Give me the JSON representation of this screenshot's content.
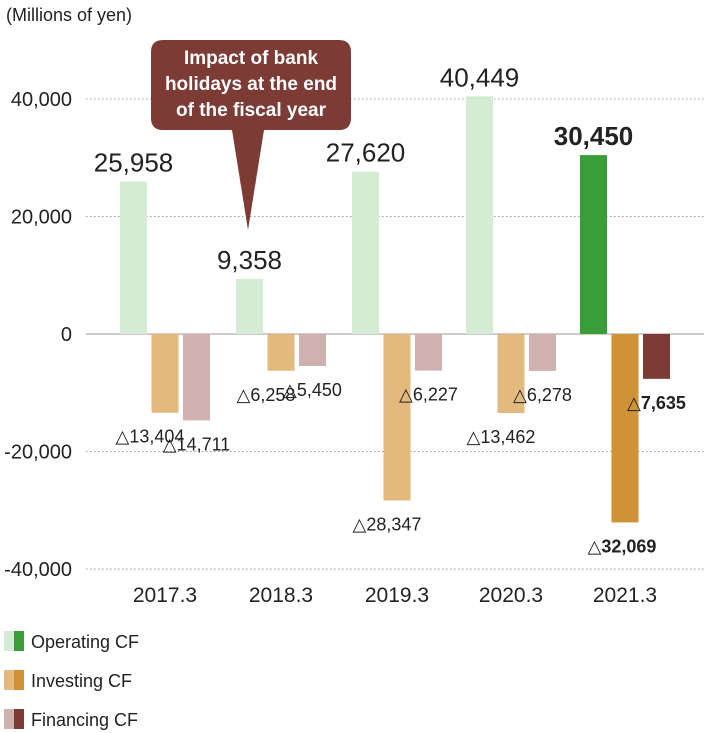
{
  "chart_data": {
    "type": "bar",
    "unit_label": "(Millions of yen)",
    "categories": [
      "2017.3",
      "2018.3",
      "2019.3",
      "2020.3",
      "2021.3"
    ],
    "highlight_category": "2021.3",
    "ylim": [
      -40000,
      40000
    ],
    "yticks": [
      {
        "value": 40000,
        "label": "40,000"
      },
      {
        "value": 20000,
        "label": "20,000"
      },
      {
        "value": 0,
        "label": "0"
      },
      {
        "value": -20000,
        "label": "-20,000"
      },
      {
        "value": -40000,
        "label": "-40,000"
      }
    ],
    "grid": "dotted horizontal",
    "legend_position": "bottom-left",
    "series": [
      {
        "name": "Operating CF",
        "color": "#d3ecd3",
        "highlight_color": "#3a9e38",
        "values": [
          25958,
          9358,
          27620,
          40449,
          30450
        ],
        "labels": [
          "25,958",
          "9,358",
          "27,620",
          "40,449",
          "30,450"
        ]
      },
      {
        "name": "Investing CF",
        "color": "#e3b97d",
        "highlight_color": "#cf9237",
        "values": [
          -13404,
          -6258,
          -28347,
          -13462,
          -32069
        ],
        "labels": [
          "△13,404",
          "△6,258",
          "△28,347",
          "△13,462",
          "△32,069"
        ]
      },
      {
        "name": "Financing CF",
        "color": "#cfb2b0",
        "highlight_color": "#7d3b35",
        "values": [
          -14711,
          -5450,
          -6227,
          -6278,
          -7635
        ],
        "labels": [
          "△14,711",
          "△5,450",
          "△6,227",
          "△6,278",
          "△7,635"
        ]
      }
    ],
    "annotation": {
      "lines": [
        "Impact of bank",
        "holidays at the end",
        "of the fiscal year"
      ],
      "target_category": "2018.3",
      "color": "#7d3b35"
    }
  }
}
